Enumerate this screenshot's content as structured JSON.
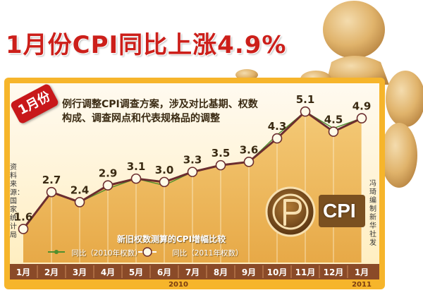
{
  "headline": "1月份CPI同比上涨4.9%",
  "month_tag": "1月份",
  "note_line1": "例行调整CPI调查方案，涉及对比基期、权数",
  "note_line2": "构成、调查网点和代表规格品的调整",
  "source": "资料来源：国家统计局",
  "credit": "冯琦 编制 新华社发",
  "logo_text": "CPI",
  "legend_title": "新旧权数测算的CPI增幅比较",
  "legend": {
    "old_weights": "同比（2010年权数）",
    "new_weights": "同比（2011年权数）"
  },
  "colors": {
    "headline": "#cc1f1a",
    "board_frame": "#f6b52b",
    "board_fill": "#fff3cf",
    "area": "#f2c36a",
    "line": "#6b2d2f",
    "axis_bar": "#8a4a28",
    "logo": "#7a5020"
  },
  "chart_data": {
    "type": "area",
    "categories": [
      "1月",
      "2月",
      "3月",
      "4月",
      "5月",
      "6月",
      "7月",
      "8月",
      "9月",
      "10月",
      "11月",
      "12月",
      "1月"
    ],
    "year_groups": [
      {
        "label": "2010",
        "from": 0,
        "to": 11
      },
      {
        "label": "2011",
        "from": 12,
        "to": 12
      }
    ],
    "series": [
      {
        "name": "同比（2011年权数）",
        "values": [
          1.6,
          2.7,
          2.4,
          2.9,
          3.1,
          3.0,
          3.3,
          3.5,
          3.6,
          4.3,
          5.1,
          4.5,
          4.9
        ]
      },
      {
        "name": "同比（2010年权数）",
        "values": [
          1.6,
          2.7,
          2.4,
          2.8,
          3.1,
          2.9,
          3.3,
          3.5,
          3.6,
          4.4,
          5.1,
          4.6,
          4.9
        ]
      }
    ],
    "data_labels": [
      "1.6",
      "2.7",
      "2.4",
      "2.9",
      "3.1",
      "3.0",
      "3.3",
      "3.5",
      "3.6",
      "4.3",
      "5.1",
      "4.5",
      "4.9"
    ],
    "ylim": [
      0.6,
      5.9
    ],
    "grid": false,
    "legend_position": "bottom-left"
  }
}
